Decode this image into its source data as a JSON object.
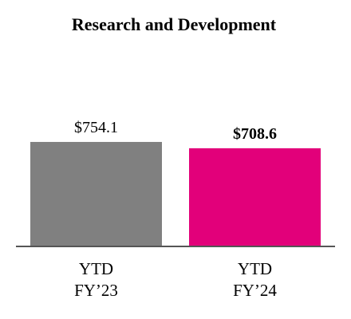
{
  "chart_data": {
    "type": "bar",
    "title": "Research and Development",
    "categories": [
      "YTD\nFY’23",
      "YTD\nFY’24"
    ],
    "values": [
      754.1,
      708.6
    ],
    "value_labels": [
      "$754.1",
      "$708.6"
    ],
    "label_bold": [
      false,
      true
    ],
    "colors": [
      "#808080",
      "#e2007a"
    ],
    "ylim": [
      0,
      800
    ]
  }
}
